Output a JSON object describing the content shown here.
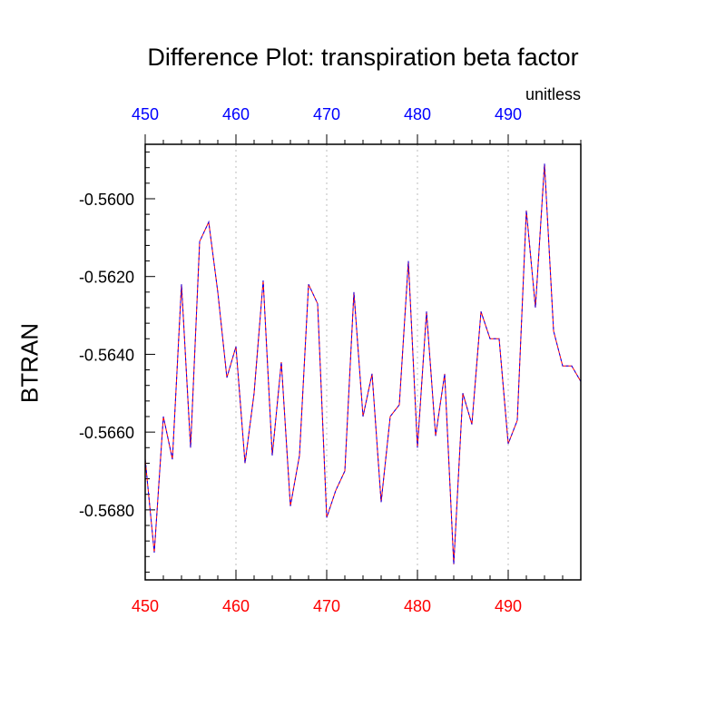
{
  "chart_data": {
    "type": "line",
    "title": "Difference Plot: transpiration beta factor",
    "units_label": "unitless",
    "ylabel": "BTRAN",
    "xlim": [
      450,
      498
    ],
    "ylim": [
      -0.5698,
      -0.5586
    ],
    "x_ticks": [
      "450",
      "460",
      "470",
      "480",
      "490"
    ],
    "y_ticks": [
      "-0.5600",
      "-0.5620",
      "-0.5640",
      "-0.5660",
      "-0.5680"
    ],
    "grid": "vertical dotted at major x ticks",
    "colors": {
      "top_axis_labels": "#0000ff",
      "bottom_axis_labels": "#ff0000",
      "series_1": "#0000ff",
      "series_2": "#ff0000"
    },
    "x": [
      450,
      451,
      452,
      453,
      454,
      455,
      456,
      457,
      458,
      459,
      460,
      461,
      462,
      463,
      464,
      465,
      466,
      467,
      468,
      469,
      470,
      471,
      472,
      473,
      474,
      475,
      476,
      477,
      478,
      479,
      480,
      481,
      482,
      483,
      484,
      485,
      486,
      487,
      488,
      489,
      490,
      491,
      492,
      493,
      494,
      495,
      496,
      497,
      498
    ],
    "series": [
      {
        "values": [
          -0.5667,
          -0.5691,
          -0.5656,
          -0.5667,
          -0.5622,
          -0.5664,
          -0.5611,
          -0.5606,
          -0.5624,
          -0.5646,
          -0.5638,
          -0.5668,
          -0.565,
          -0.5621,
          -0.5666,
          -0.5642,
          -0.5679,
          -0.5666,
          -0.5622,
          -0.5627,
          -0.5682,
          -0.5675,
          -0.567,
          -0.5624,
          -0.5656,
          -0.5645,
          -0.5678,
          -0.5656,
          -0.5653,
          -0.5616,
          -0.5664,
          -0.5629,
          -0.5661,
          -0.5645,
          -0.5694,
          -0.565,
          -0.5658,
          -0.5629,
          -0.5636,
          -0.5636,
          -0.5663,
          -0.5657,
          -0.5603,
          -0.5628,
          -0.5591,
          -0.5634,
          -0.5643,
          -0.5643,
          -0.5647
        ]
      },
      {
        "values": [
          -0.5667,
          -0.5691,
          -0.5656,
          -0.5667,
          -0.5622,
          -0.5664,
          -0.5611,
          -0.5606,
          -0.5624,
          -0.5646,
          -0.5638,
          -0.5668,
          -0.565,
          -0.5621,
          -0.5666,
          -0.5642,
          -0.5679,
          -0.5666,
          -0.5622,
          -0.5627,
          -0.5682,
          -0.5675,
          -0.567,
          -0.5624,
          -0.5656,
          -0.5645,
          -0.5678,
          -0.5656,
          -0.5653,
          -0.5616,
          -0.5664,
          -0.5629,
          -0.5661,
          -0.5645,
          -0.5694,
          -0.565,
          -0.5658,
          -0.5629,
          -0.5636,
          -0.5636,
          -0.5663,
          -0.5657,
          -0.5603,
          -0.5628,
          -0.5591,
          -0.5634,
          -0.5643,
          -0.5643,
          -0.5647
        ]
      }
    ]
  }
}
